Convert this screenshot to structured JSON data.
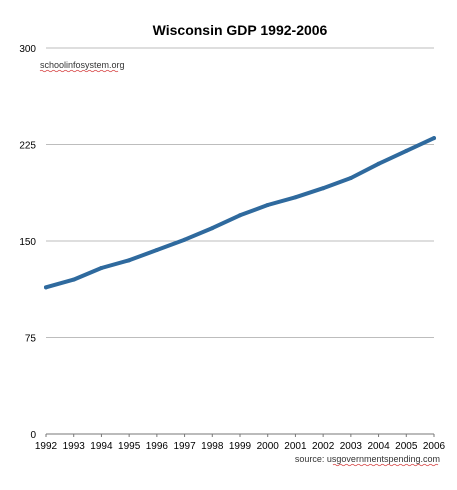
{
  "chart_data": {
    "type": "line",
    "title": "Wisconsin GDP 1992-2006",
    "xlabel": "",
    "ylabel": "",
    "x": [
      "1992",
      "1993",
      "1994",
      "1995",
      "1996",
      "1997",
      "1998",
      "1999",
      "2000",
      "2001",
      "2002",
      "2003",
      "2004",
      "2005",
      "2006"
    ],
    "series": [
      {
        "values": [
          114,
          120,
          129,
          135,
          143,
          151,
          160,
          170,
          178,
          184,
          191,
          199,
          210,
          220,
          230
        ],
        "color": "#2f6a9e"
      }
    ],
    "ylim": [
      0,
      300
    ],
    "yticks": [
      "0",
      "75",
      "150",
      "225",
      "300"
    ],
    "grid": true,
    "legend": "none",
    "annotations": {
      "watermark": "schoolinfosystem.org",
      "source": "source: usgovernmentspending.com"
    }
  }
}
